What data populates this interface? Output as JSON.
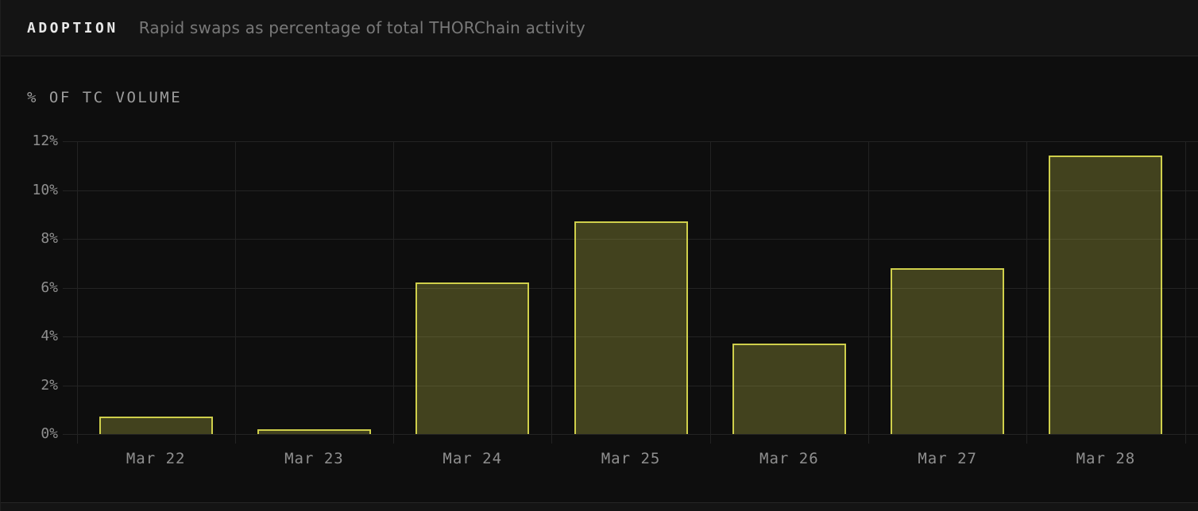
{
  "header": {
    "title": "ADOPTION",
    "subtitle": "Rapid swaps as percentage of total THORChain activity"
  },
  "y_axis_title": "% OF TC VOLUME",
  "colors": {
    "bar_border": "#cfcf4b",
    "bar_fill": "rgba(207,207,75,0.27)",
    "grid": "#232323",
    "tick_text": "#8f8f8f",
    "title_text": "#e8e8e8",
    "subtitle_text": "#787878",
    "background": "#0e0e0e",
    "header_background": "#141414"
  },
  "chart_data": {
    "type": "bar",
    "title": "ADOPTION",
    "subtitle": "Rapid swaps as percentage of total THORChain activity",
    "xlabel": "",
    "ylabel": "% OF TC VOLUME",
    "categories": [
      "Mar 22",
      "Mar 23",
      "Mar 24",
      "Mar 25",
      "Mar 26",
      "Mar 27",
      "Mar 28"
    ],
    "values": [
      0.7,
      0.2,
      6.2,
      8.7,
      3.7,
      6.8,
      11.4
    ],
    "unit": "%",
    "ylim": [
      0,
      12
    ],
    "y_tick_labels": [
      "0%",
      "2%",
      "4%",
      "6%",
      "8%",
      "10%",
      "12%"
    ],
    "y_tick_values": [
      0,
      2,
      4,
      6,
      8,
      10,
      12
    ],
    "grid": true,
    "legend_position": "none"
  }
}
